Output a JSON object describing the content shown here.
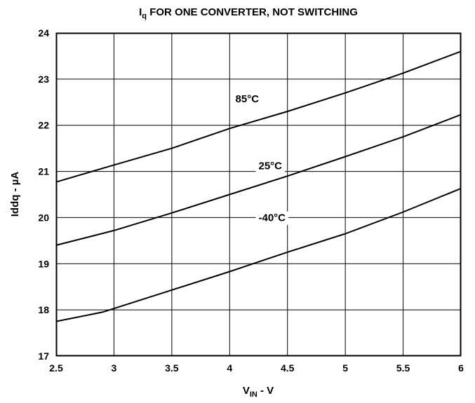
{
  "chart_data": {
    "type": "line",
    "title": {
      "main": "I",
      "sub": "q",
      "rest": " FOR ONE CONVERTER, NOT SWITCHING"
    },
    "xlabel": {
      "main": "V",
      "sub": "IN",
      "rest": " - V"
    },
    "ylabel": "Iddq - µA",
    "xlim": [
      2.5,
      6
    ],
    "ylim": [
      17,
      24
    ],
    "x_ticks": [
      "2.5",
      "3",
      "3.5",
      "4",
      "4.5",
      "5",
      "5.5",
      "6"
    ],
    "y_ticks": [
      "17",
      "18",
      "19",
      "20",
      "21",
      "22",
      "23",
      "24"
    ],
    "grid": true,
    "series": [
      {
        "name": "85°C",
        "x": [
          2.5,
          3.0,
          3.5,
          4.0,
          4.5,
          5.0,
          5.5,
          6.0
        ],
        "y": [
          20.77,
          21.14,
          21.5,
          21.93,
          22.3,
          22.7,
          23.13,
          23.6
        ],
        "label_at": [
          4.05,
          22.5
        ]
      },
      {
        "name": "25°C",
        "x": [
          2.5,
          3.0,
          3.5,
          4.0,
          4.5,
          5.0,
          5.5,
          6.0
        ],
        "y": [
          19.4,
          19.72,
          20.1,
          20.5,
          20.9,
          21.32,
          21.75,
          22.23
        ],
        "label_at": [
          4.25,
          21.05
        ]
      },
      {
        "name": "-40°C",
        "x": [
          2.5,
          2.9,
          3.0,
          3.5,
          4.0,
          4.5,
          5.0,
          5.5,
          6.0
        ],
        "y": [
          17.75,
          17.95,
          18.03,
          18.43,
          18.83,
          19.25,
          19.65,
          20.12,
          20.63
        ],
        "label_at": [
          4.25,
          19.92
        ]
      }
    ]
  }
}
